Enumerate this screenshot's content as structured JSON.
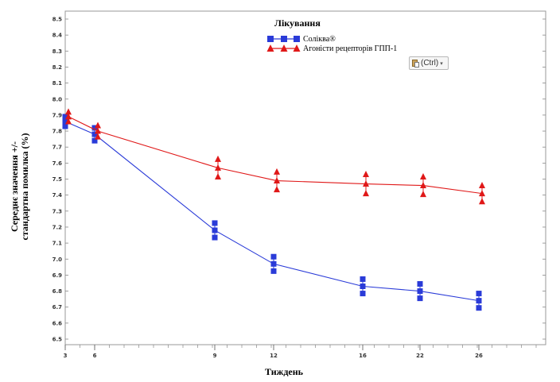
{
  "chart_data": {
    "type": "line",
    "title": "",
    "legend_title": "Лікування",
    "xlabel": "Тиждень",
    "ylabel_line1": "Середнє значення +/-",
    "ylabel_line2": "стандартна помилка (%)",
    "ylim": [
      6.5,
      8.5
    ],
    "xlim": [
      3,
      29
    ],
    "y_ticks": [
      "6.5",
      "6.6",
      "6.7",
      "6.8",
      "6.9",
      "7.0",
      "7.1",
      "7.2",
      "7.3",
      "7.4",
      "7.5",
      "7.6",
      "7.7",
      "7.8",
      "7.9",
      "8.0",
      "8.1",
      "8.2",
      "8.3",
      "8.4",
      "8.5"
    ],
    "x_tick_values": [
      3,
      6,
      9,
      12,
      16,
      22,
      26
    ],
    "x_tick_labels": [
      "3",
      "6",
      "9",
      "12",
      "16",
      "22",
      "26"
    ],
    "legend_placement": "top-center",
    "series": [
      {
        "name": "Соліква®",
        "color": "#2a3bd8",
        "marker": "square",
        "x": [
          3,
          6,
          9,
          12,
          16,
          22,
          26
        ],
        "values": [
          7.86,
          7.78,
          7.18,
          6.97,
          6.83,
          6.8,
          6.74
        ],
        "err": [
          0.03,
          0.04,
          0.045,
          0.045,
          0.045,
          0.045,
          0.045
        ]
      },
      {
        "name": "Агоністи рецепторів ГПП-1",
        "color": "#e01818",
        "marker": "triangle",
        "x": [
          3,
          6,
          9,
          12,
          16,
          22,
          26
        ],
        "values": [
          7.89,
          7.8,
          7.57,
          7.49,
          7.47,
          7.46,
          7.41
        ],
        "err": [
          0.03,
          0.035,
          0.055,
          0.055,
          0.06,
          0.055,
          0.05
        ]
      }
    ]
  },
  "overlay": {
    "paste_options_label": "(Ctrl)",
    "paste_icon": "clipboard-paste-icon",
    "caret_icon": "chevron-down-icon"
  }
}
